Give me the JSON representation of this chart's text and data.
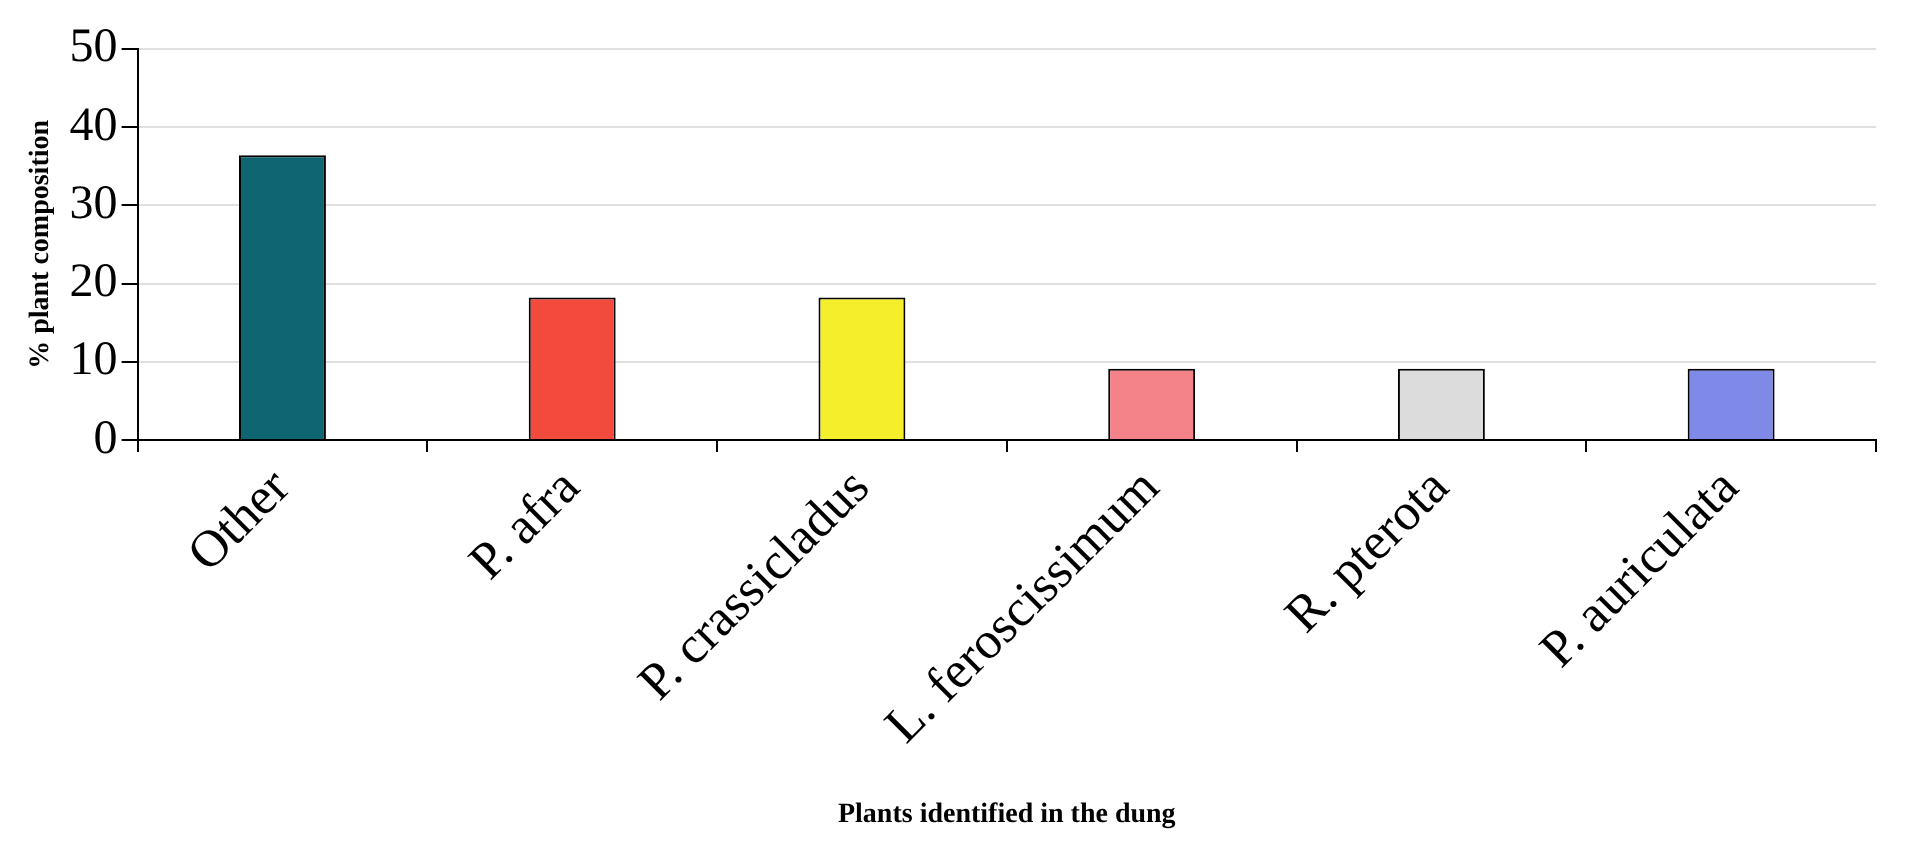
{
  "chart_data": {
    "type": "bar",
    "xlabel": "Plants identified in the dung",
    "ylabel": "% plant composition",
    "categories": [
      "Other",
      "P. afra",
      "P. crassicladus",
      "L. feroscissimum",
      "R. pterota",
      "P. auriculata"
    ],
    "values": [
      36.4,
      18.2,
      18.2,
      9.1,
      9.1,
      9.1
    ],
    "colors": [
      "#0f6672",
      "#f24a3c",
      "#f5ee2a",
      "#f38389",
      "#dcdcdc",
      "#7f8ae8"
    ],
    "ylim": [
      0,
      50
    ],
    "yticks": [
      0,
      10,
      20,
      30,
      40,
      50
    ],
    "grid": "y",
    "legend": false
  }
}
